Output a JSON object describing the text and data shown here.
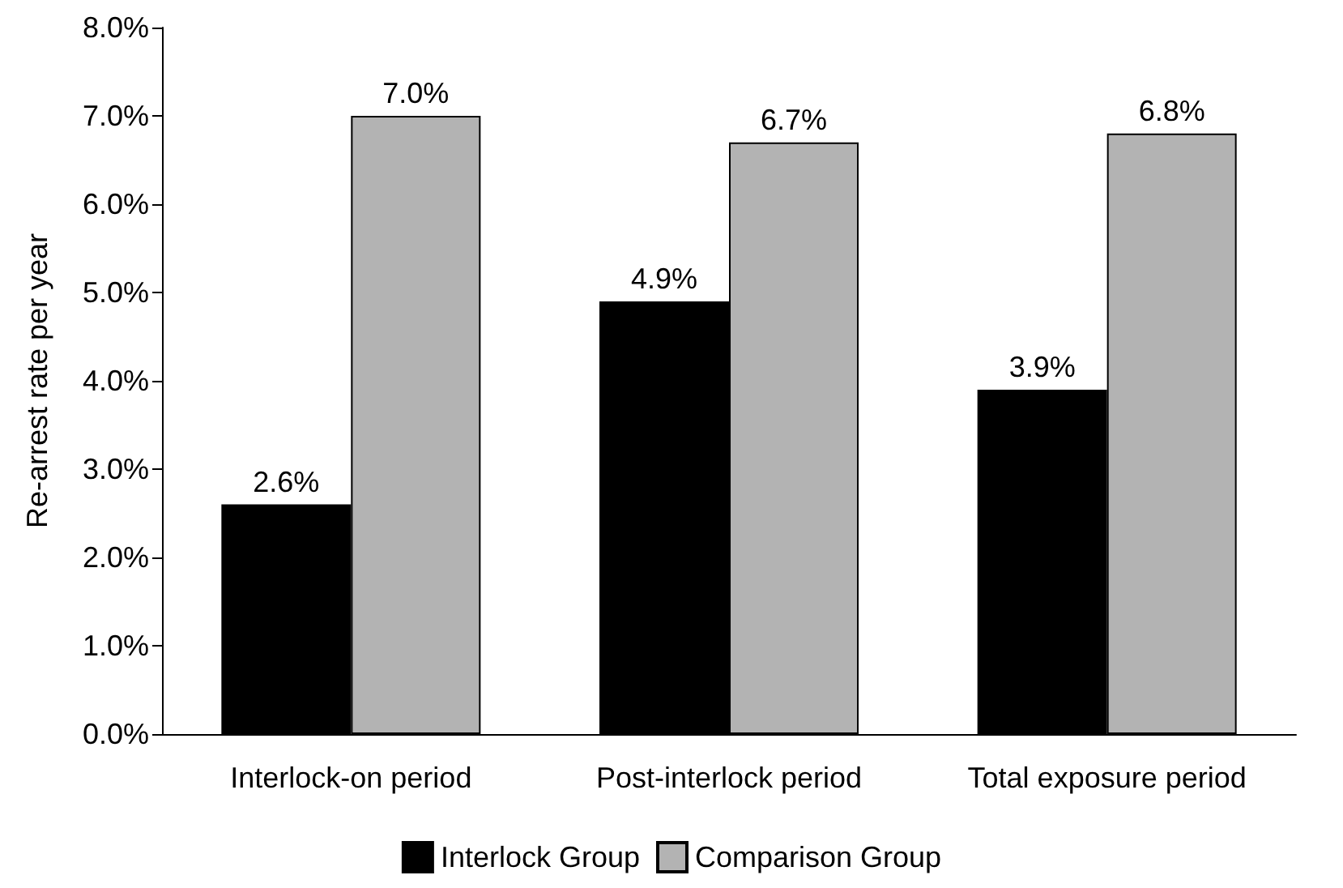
{
  "chart_data": {
    "type": "bar",
    "ylabel": "Re-arrest rate per year",
    "categories": [
      "Interlock-on period",
      "Post-interlock period",
      "Total exposure period"
    ],
    "series": [
      {
        "name": "Interlock Group",
        "color": "#000000",
        "values": [
          2.6,
          4.9,
          3.9
        ],
        "value_labels": [
          "2.6%",
          "4.9%",
          "3.9%"
        ]
      },
      {
        "name": "Comparison Group",
        "color": "#b3b3b3",
        "values": [
          7.0,
          6.7,
          6.8
        ],
        "value_labels": [
          "7.0%",
          "6.7%",
          "6.8%"
        ]
      }
    ],
    "ylim": [
      0,
      8
    ],
    "yticks": [
      {
        "value": 0,
        "label": "0.0%"
      },
      {
        "value": 1,
        "label": "1.0%"
      },
      {
        "value": 2,
        "label": "2.0%"
      },
      {
        "value": 3,
        "label": "3.0%"
      },
      {
        "value": 4,
        "label": "4.0%"
      },
      {
        "value": 5,
        "label": "5.0%"
      },
      {
        "value": 6,
        "label": "6.0%"
      },
      {
        "value": 7,
        "label": "7.0%"
      },
      {
        "value": 8,
        "label": "8.0%"
      }
    ],
    "grid": false,
    "legend": "bottom"
  }
}
